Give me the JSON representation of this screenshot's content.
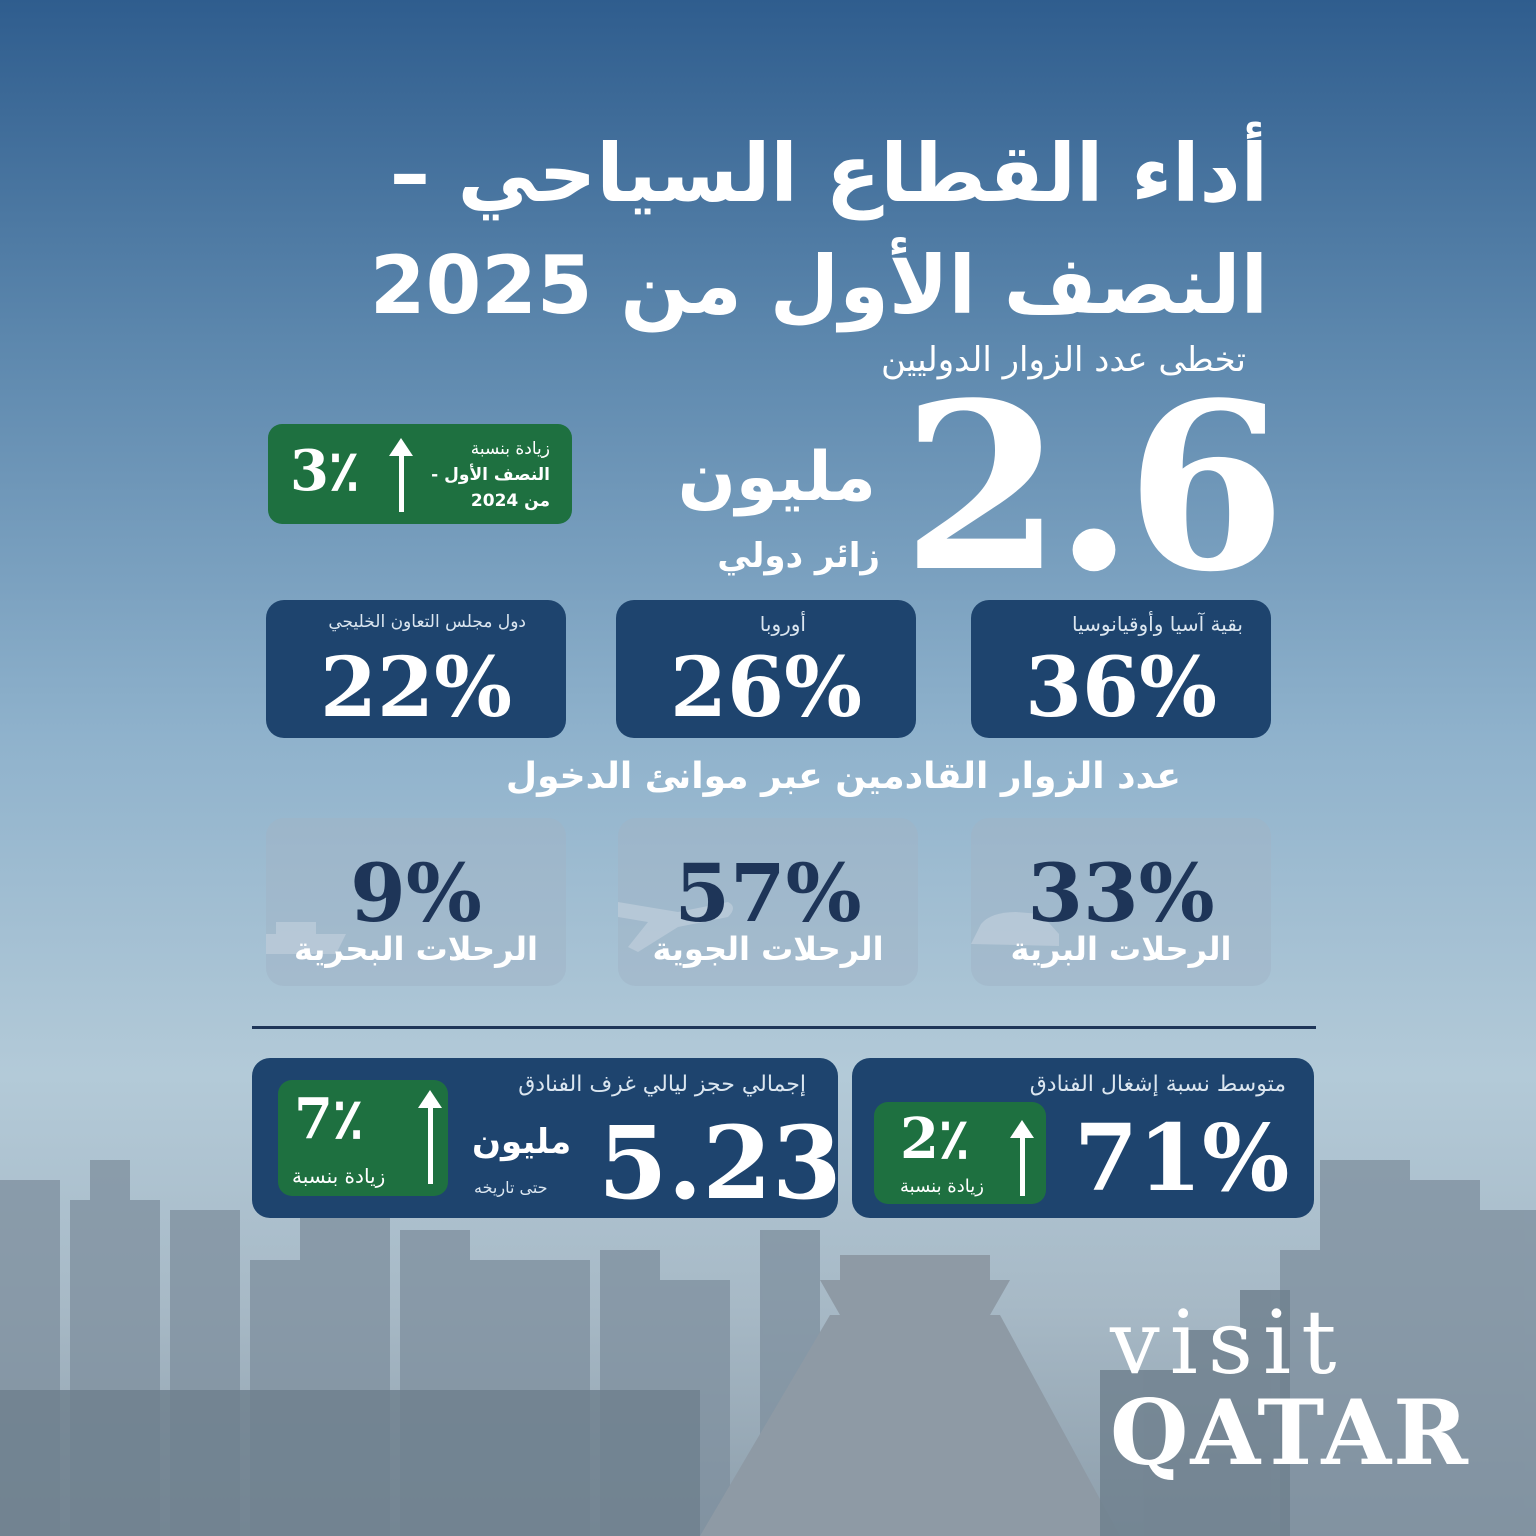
{
  "title": {
    "line1": "أداء القطاع السياحي –",
    "line2": "النصف الأول من 2025"
  },
  "visitors": {
    "intro": "تخطى عدد الزوار الدوليين",
    "value": "2.6",
    "unit": "مليون",
    "descriptor": "زائر دولي",
    "growth": {
      "line1": "زيادة بنسبة",
      "line2": "النصف الأول -",
      "line3": "من 2024",
      "value": "3٪"
    }
  },
  "regions": [
    {
      "label": "بقية آسيا وأوقيانوسيا",
      "value": "36%"
    },
    {
      "label": "أوروبا",
      "value": "26%"
    },
    {
      "label": "دول مجلس التعاون الخليجي",
      "value": "22%"
    }
  ],
  "ports": {
    "heading": "عدد الزوار القادمين عبر موانئ الدخول",
    "items": [
      {
        "label": "الرحلات البرية",
        "value": "33%",
        "icon": "car-icon"
      },
      {
        "label": "الرحلات الجوية",
        "value": "57%",
        "icon": "airplane-icon"
      },
      {
        "label": "الرحلات البحرية",
        "value": "9%",
        "icon": "ship-icon"
      }
    ]
  },
  "hotels": {
    "occupancy": {
      "label": "متوسط نسبة إشغال الفنادق",
      "value": "71%",
      "growth_value": "2٪",
      "growth_label": "زيادة بنسبة"
    },
    "room_nights": {
      "label": "إجمالي حجز ليالي غرف الفنادق",
      "value": "5.23",
      "unit": "مليون",
      "unit_note": "حتى تاريخه",
      "growth_value": "7٪",
      "growth_label": "زيادة بنسبة"
    }
  },
  "logo": {
    "line1": "visit",
    "line2": "QATAR"
  },
  "colors": {
    "navy_box": "#1e446e",
    "green_badge": "#1e7040",
    "dark_text": "#1e3558"
  }
}
